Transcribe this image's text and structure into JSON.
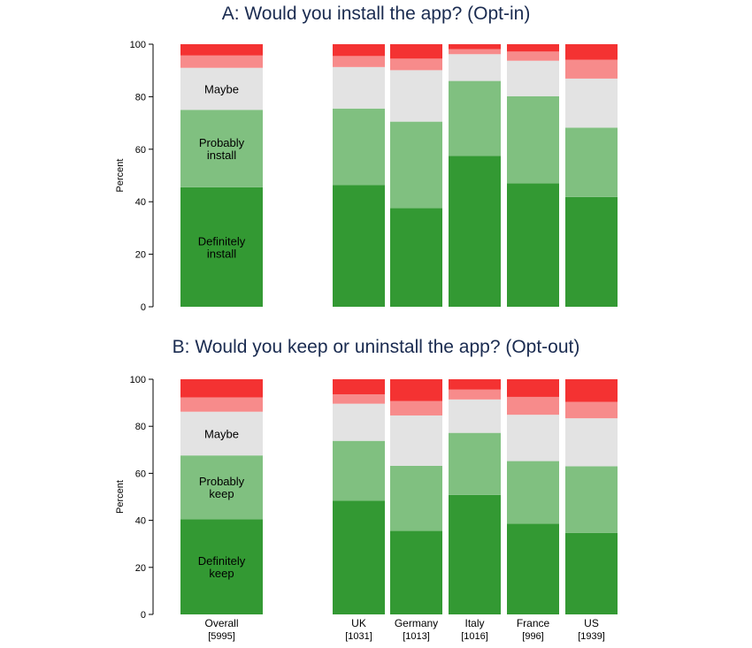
{
  "chart_data": [
    {
      "type": "bar",
      "stacked": true,
      "title": "A: Would you install the app? (Opt-in)",
      "ylabel": "Percent",
      "ylim": [
        0,
        100
      ],
      "yticks": [
        "0",
        "20",
        "40",
        "60",
        "80",
        "100"
      ],
      "categories": [
        "Overall",
        "UK",
        "Germany",
        "Italy",
        "France",
        "US"
      ],
      "sample_sizes": [
        "[5995]",
        "[1031]",
        "[1013]",
        "[1016]",
        "[996]",
        "[1939]"
      ],
      "show_category_labels": false,
      "segment_labels": [
        "Definitely\ninstall",
        "Probably\ninstall",
        "Maybe",
        "",
        ""
      ],
      "series": [
        {
          "values": [
            45.5,
            46.3,
            37.6,
            57.5,
            47.0,
            41.8
          ],
          "color": "#339933"
        },
        {
          "values": [
            29.5,
            29.2,
            32.9,
            28.5,
            33.2,
            26.4
          ],
          "color": "#80c080"
        },
        {
          "values": [
            16.0,
            15.8,
            19.6,
            10.2,
            13.5,
            18.7
          ],
          "color": "#e3e3e3"
        },
        {
          "values": [
            4.7,
            4.2,
            4.4,
            1.9,
            3.5,
            7.2
          ],
          "color": "#f78b8b"
        },
        {
          "values": [
            4.3,
            4.5,
            5.5,
            1.9,
            2.8,
            5.9
          ],
          "color": "#f43232"
        }
      ]
    },
    {
      "type": "bar",
      "stacked": true,
      "title": "B: Would you keep or uninstall the app? (Opt-out)",
      "ylabel": "Percent",
      "ylim": [
        0,
        100
      ],
      "yticks": [
        "0",
        "20",
        "40",
        "60",
        "80",
        "100"
      ],
      "categories": [
        "Overall",
        "UK",
        "Germany",
        "Italy",
        "France",
        "US"
      ],
      "sample_sizes": [
        "[5995]",
        "[1031]",
        "[1013]",
        "[1016]",
        "[996]",
        "[1939]"
      ],
      "show_category_labels": true,
      "segment_labels": [
        "Definitely\nkeep",
        "Probably\nkeep",
        "Maybe",
        "",
        ""
      ],
      "series": [
        {
          "values": [
            40.5,
            48.3,
            35.5,
            50.8,
            38.6,
            34.6
          ],
          "color": "#339933"
        },
        {
          "values": [
            27.1,
            25.5,
            27.7,
            26.4,
            26.6,
            28.4
          ],
          "color": "#80c080"
        },
        {
          "values": [
            18.6,
            15.8,
            21.4,
            14.2,
            19.7,
            20.4
          ],
          "color": "#e3e3e3"
        },
        {
          "values": [
            6.1,
            4.0,
            6.1,
            4.2,
            7.6,
            7.0
          ],
          "color": "#f78b8b"
        },
        {
          "values": [
            7.7,
            6.4,
            9.3,
            4.4,
            7.5,
            9.6
          ],
          "color": "#f43232"
        }
      ]
    }
  ]
}
